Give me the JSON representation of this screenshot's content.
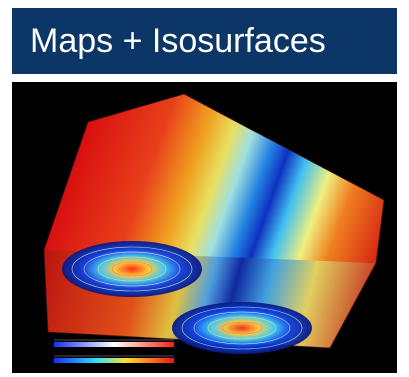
{
  "header": {
    "title": "Maps + Isosurfaces"
  },
  "visualization": {
    "colorbars": [
      {
        "label": "",
        "scale": "blue-white-red"
      },
      {
        "label": "",
        "scale": "blue-cyan-yellow-red"
      }
    ]
  },
  "colors": {
    "header_bg": "#0b3666",
    "background": "#000000"
  }
}
